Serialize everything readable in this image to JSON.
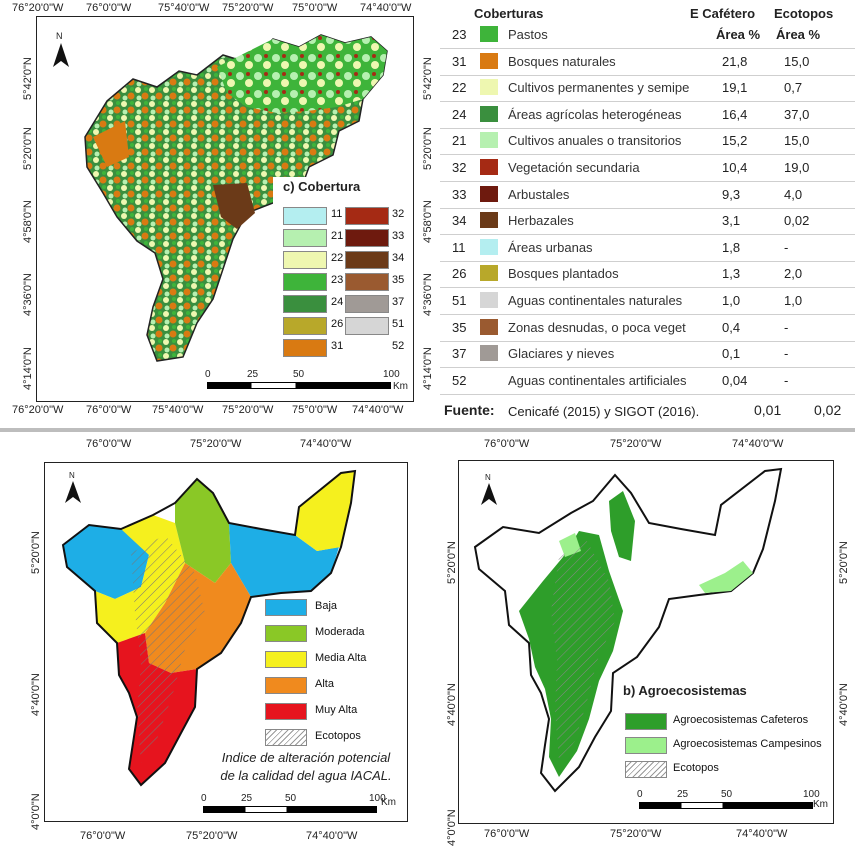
{
  "top_map": {
    "top_coords": [
      "76°20'0\"W",
      "76°0'0\"W",
      "75°40'0\"W",
      "75°20'0\"W",
      "75°0'0\"W",
      "74°40'0\"W"
    ],
    "bottom_coords": [
      "76°20'0\"W",
      "76°0'0\"W",
      "75°40'0\"W",
      "75°20'0\"W",
      "75°0'0\"W",
      "74°40'0\"W"
    ],
    "left_coords": [
      "5°42'0\"N",
      "5°20'0\"N",
      "4°58'0\"N",
      "4°36'0\"N",
      "4°14'0\"N"
    ],
    "right_coords": [
      "5°42'0\"N",
      "5°20'0\"N",
      "4°58'0\"N",
      "4°36'0\"N",
      "4°14'0\"N"
    ],
    "north": "N",
    "legend_title": "c) Cobertura",
    "legend_left": [
      {
        "code": "11",
        "color": "#b4eef0"
      },
      {
        "code": "21",
        "color": "#b6f0b0"
      },
      {
        "code": "22",
        "color": "#eef7b0"
      },
      {
        "code": "23",
        "color": "#3eb43a"
      },
      {
        "code": "24",
        "color": "#3a8f3e"
      },
      {
        "code": "26",
        "color": "#b8a82a"
      },
      {
        "code": "31",
        "color": "#d97a12"
      }
    ],
    "legend_right": [
      {
        "code": "32",
        "color": "#a52a14"
      },
      {
        "code": "33",
        "color": "#6e1a0e"
      },
      {
        "code": "34",
        "color": "#6b3a18"
      },
      {
        "code": "35",
        "color": "#9a5a30"
      },
      {
        "code": "37",
        "color": "#a09a96"
      },
      {
        "code": "51",
        "color": "#d6d6d6"
      },
      {
        "code": "52",
        "color": "#ffffff"
      }
    ],
    "scale": [
      "0",
      "25",
      "50",
      "100",
      "Km"
    ]
  },
  "table": {
    "col_coberturas": "Coberturas",
    "col_cafetero": "E Cafétero",
    "col_ecotopos": "Ecotopos",
    "sub_area1": "Área %",
    "sub_area2": "Área %",
    "rows": [
      {
        "code": "23",
        "name": "Pastos",
        "color": "#3eb43a",
        "caf": "",
        "eco": ""
      },
      {
        "code": "31",
        "name": "Bosques naturales",
        "color": "#d97a12",
        "caf": "21,8",
        "eco": "15,0"
      },
      {
        "code": "22",
        "name": "Cultivos  permanentes  y semipe",
        "color": "#eef7b0",
        "caf": "19,1",
        "eco": "0,7"
      },
      {
        "code": "24",
        "name": "Áreas agrícolas heterogéneas",
        "color": "#3a8f3e",
        "caf": "16,4",
        "eco": "37,0"
      },
      {
        "code": "21",
        "name": "Cultivos anuales o transitorios",
        "color": "#b6f0b0",
        "caf": "15,2",
        "eco": "15,0"
      },
      {
        "code": "32",
        "name": "Vegetación secundaria",
        "color": "#a52a14",
        "caf": "10,4",
        "eco": "19,0"
      },
      {
        "code": "33",
        "name": "Arbustales",
        "color": "#6e1a0e",
        "caf": "9,3",
        "eco": "4,0"
      },
      {
        "code": "34",
        "name": "Herbazales",
        "color": "#6b3a18",
        "caf": "3,1",
        "eco": "0,02"
      },
      {
        "code": "11",
        "name": "Áreas urbanas",
        "color": "#b4eef0",
        "caf": "1,8",
        "eco": "-"
      },
      {
        "code": "26",
        "name": "Bosques plantados",
        "color": "#b8a82a",
        "caf": "1,3",
        "eco": "2,0"
      },
      {
        "code": "51",
        "name": "Aguas continentales naturales",
        "color": "#d6d6d6",
        "caf": "1,0",
        "eco": "1,0"
      },
      {
        "code": "35",
        "name": "Zonas desnudas, o poca veget",
        "color": "#9a5a30",
        "caf": "0,4",
        "eco": "-"
      },
      {
        "code": "37",
        "name": "Glaciares y nieves",
        "color": "#a09a96",
        "caf": "0,1",
        "eco": "-"
      },
      {
        "code": "52",
        "name": "Aguas continentales artificiales",
        "color": "",
        "caf": "0,04",
        "eco": "-"
      }
    ],
    "fuente_label": "Fuente:",
    "fuente_text": "Cenicafé (2015) y SIGOT (2016).",
    "fuente_caf": "0,01",
    "fuente_eco": "0,02"
  },
  "iacal_map": {
    "top_coords": [
      "76°0'0\"W",
      "75°20'0\"W",
      "74°40'0\"W"
    ],
    "bottom_coords": [
      "76°0'0\"W",
      "75°20'0\"W",
      "74°40'0\"W"
    ],
    "left_coords": [
      "5°20'0\"N",
      "4°40'0\"N",
      "4°0'0\"N"
    ],
    "north": "N",
    "legend": [
      {
        "label": "Baja",
        "color": "#1eaee6"
      },
      {
        "label": "Moderada",
        "color": "#8ac826"
      },
      {
        "label": "Media Alta",
        "color": "#f5f01e"
      },
      {
        "label": "Alta",
        "color": "#f08a1e"
      },
      {
        "label": "Muy Alta",
        "color": "#e6141e"
      },
      {
        "label": "Ecotopos",
        "color": "hatch"
      }
    ],
    "caption_line1": "Indice de alteración potencial",
    "caption_line2": "de la calidad del agua IACAL.",
    "scale": [
      "0",
      "25",
      "50",
      "100",
      "Km"
    ]
  },
  "agro_map": {
    "top_coords": [
      "76°0'0\"W",
      "75°20'0\"W",
      "74°40'0\"W"
    ],
    "bottom_coords": [
      "76°0'0\"W",
      "75°20'0\"W",
      "74°40'0\"W"
    ],
    "left_coords": [
      "5°20'0\"N",
      "4°40'0\"N",
      "4°0'0\"N"
    ],
    "right_coords": [
      "5°20'0\"N",
      "4°40'0\"N"
    ],
    "north": "N",
    "legend_title": "b) Agroecosistemas",
    "legend": [
      {
        "label": "Agroecosistemas Cafeteros",
        "color": "#2e9e2a"
      },
      {
        "label": "Agroecosistemas Campesinos",
        "color": "#9cf08c"
      },
      {
        "label": "Ecotopos",
        "color": "hatch"
      }
    ],
    "scale": [
      "0",
      "25",
      "50",
      "100",
      "Km"
    ]
  }
}
